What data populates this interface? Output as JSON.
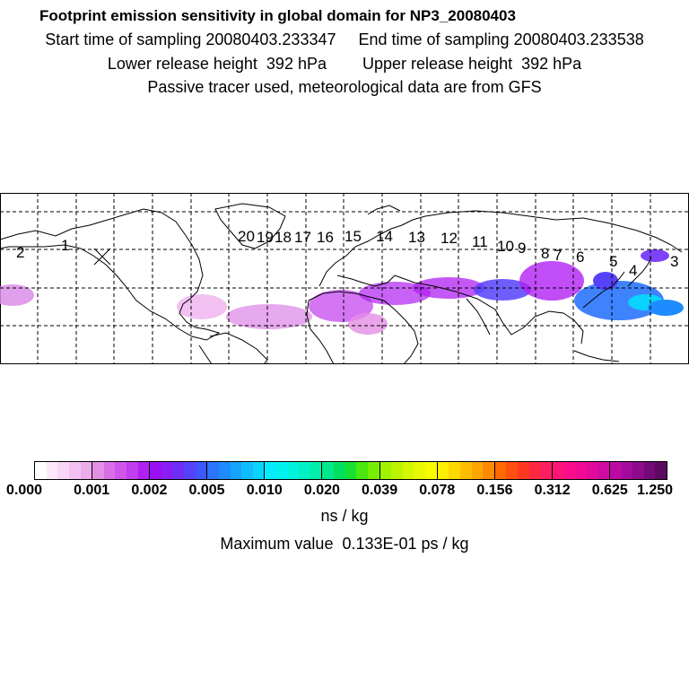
{
  "title": {
    "main": "Footprint emission sensitivity in global domain for NP3_20080403",
    "sampling": "Start time of sampling 20080403.233347     End time of sampling 20080403.233538",
    "release": "Lower release height  392 hPa        Upper release height  392 hPa",
    "note": "Passive tracer used, meteorological data are from GFS"
  },
  "map": {
    "trajectory_labels": [
      "20",
      "19",
      "18",
      "17",
      "16",
      "15",
      "14",
      "13",
      "12",
      "11",
      "10",
      "9",
      "8",
      "7",
      "6",
      "5",
      "4",
      "3",
      "2",
      "1"
    ]
  },
  "colorbar": {
    "ticks": [
      "0.000",
      "0.001",
      "0.002",
      "0.005",
      "0.010",
      "0.020",
      "0.039",
      "0.078",
      "0.156",
      "0.312",
      "0.625",
      "1.250"
    ],
    "units": "ns / kg",
    "blocks": [
      [
        "#ffffff",
        "#fbe9fb",
        "#f7d6f7",
        "#f2c1f2",
        "#ecacec"
      ],
      [
        "#e38fe3",
        "#d96fe6",
        "#cf55ec",
        "#c23cf0",
        "#b020f2"
      ],
      [
        "#9b10f3",
        "#8a1cf5",
        "#6f2ef8",
        "#5742fb",
        "#3d58fd"
      ],
      [
        "#2a74fe",
        "#1e8cfe",
        "#16a4fe",
        "#10bcfe",
        "#0ad4fe"
      ],
      [
        "#04ecfe",
        "#00f2f0",
        "#00f2dc",
        "#00f0c4",
        "#00eeaa"
      ],
      [
        "#00e88c",
        "#00e060",
        "#18e030",
        "#48e810",
        "#78ee00"
      ],
      [
        "#a0f200",
        "#bcf400",
        "#d4f600",
        "#e8f800",
        "#f8fa00"
      ],
      [
        "#ffef00",
        "#ffd800",
        "#ffbe00",
        "#ffa400",
        "#ff8a00"
      ],
      [
        "#ff6a00",
        "#ff5010",
        "#ff3820",
        "#ff2840",
        "#ff1e60"
      ],
      [
        "#ff1478",
        "#fb0c88",
        "#f00a94",
        "#e20a9c",
        "#d00aa2"
      ],
      [
        "#bc0aa4",
        "#a40a9c",
        "#8c0a8c",
        "#740a78",
        "#5c0a60"
      ]
    ]
  },
  "max_value": "Maximum value  0.133E-01 ps / kg"
}
